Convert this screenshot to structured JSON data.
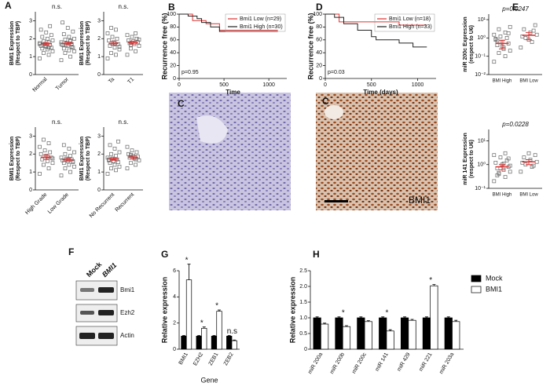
{
  "chart_data": [
    {
      "type": "strip",
      "label": "A",
      "annotation": "n.s.",
      "ylabel": [
        "BMI1 Expression",
        "(Respect to TBP)"
      ],
      "categories": [
        "Normal",
        "Tumor"
      ],
      "values": [
        [
          0.9,
          1.1,
          1.2,
          1.3,
          1.4,
          1.45,
          1.5,
          1.55,
          1.6,
          1.65,
          1.7,
          1.75,
          1.8,
          1.85,
          1.9,
          2.0,
          2.1,
          2.2,
          2.35,
          2.5,
          2.7,
          1.6,
          1.7,
          1.5
        ],
        [
          0.8,
          1.0,
          1.2,
          1.3,
          1.35,
          1.45,
          1.5,
          1.6,
          1.65,
          1.7,
          1.75,
          1.8,
          1.9,
          1.95,
          2.0,
          2.1,
          2.25,
          2.4,
          2.6,
          2.9,
          1.55,
          1.65,
          1.7,
          1.85
        ]
      ],
      "mean": [
        1.72,
        1.74
      ],
      "sem": [
        0.07,
        0.07
      ],
      "ylim": [
        0,
        3.5
      ],
      "yticks": [
        0,
        1,
        2,
        3
      ],
      "color": "#666666",
      "mean_color": "#e03030"
    },
    {
      "type": "strip",
      "annotation": "n.s.",
      "ylabel": [
        "BMI1 Expression",
        "(Respect to TBP)"
      ],
      "categories": [
        "Ta",
        "T1"
      ],
      "values": [
        [
          0.9,
          1.1,
          1.2,
          1.4,
          1.5,
          1.6,
          1.7,
          1.8,
          1.9,
          2.0,
          2.1,
          2.3,
          2.5,
          2.6,
          1.55,
          1.75
        ],
        [
          1.1,
          1.3,
          1.45,
          1.6,
          1.7,
          1.75,
          1.8,
          1.85,
          1.9,
          2.0,
          2.1,
          2.2,
          2.3,
          1.65,
          1.95
        ]
      ],
      "mean": [
        1.74,
        1.78
      ],
      "sem": [
        0.1,
        0.08
      ],
      "ylim": [
        0,
        3.5
      ],
      "yticks": [
        0,
        1,
        2,
        3
      ],
      "color": "#666666",
      "mean_color": "#e03030"
    },
    {
      "type": "strip",
      "annotation": "n.s.",
      "ylabel": [
        "BMI1 Expression",
        "(Respect to TBP)"
      ],
      "categories": [
        "High Grade",
        "Low Grade"
      ],
      "values": [
        [
          0.9,
          1.2,
          1.4,
          1.5,
          1.6,
          1.7,
          1.8,
          1.9,
          2.0,
          2.1,
          2.2,
          2.4,
          2.6,
          2.8,
          1.75,
          1.85
        ],
        [
          0.8,
          1.0,
          1.2,
          1.3,
          1.4,
          1.5,
          1.55,
          1.6,
          1.65,
          1.7,
          1.75,
          1.8,
          1.9,
          2.0,
          2.1,
          2.3,
          2.5,
          1.6,
          1.7
        ]
      ],
      "mean": [
        1.82,
        1.68
      ],
      "sem": [
        0.12,
        0.08
      ],
      "ylim": [
        0,
        3.5
      ],
      "yticks": [
        0,
        1,
        2,
        3
      ],
      "color": "#666666",
      "mean_color": "#e03030"
    },
    {
      "type": "strip",
      "annotation": "n.s.",
      "ylabel": [
        "BMI1 Expression",
        "(Respect to TBP)"
      ],
      "categories": [
        "No Recurrent",
        "Recurrent"
      ],
      "values": [
        [
          0.9,
          1.1,
          1.2,
          1.3,
          1.4,
          1.5,
          1.55,
          1.6,
          1.65,
          1.7,
          1.75,
          1.8,
          1.9,
          2.0,
          2.1,
          2.3,
          2.5,
          2.7,
          1.6,
          1.7
        ],
        [
          1.2,
          1.4,
          1.5,
          1.65,
          1.75,
          1.8,
          1.85,
          1.9,
          2.0,
          2.1,
          2.2,
          2.4,
          1.7,
          1.95
        ]
      ],
      "mean": [
        1.72,
        1.82
      ],
      "sem": [
        0.07,
        0.09
      ],
      "ylim": [
        0,
        3.5
      ],
      "yticks": [
        0,
        1,
        2,
        3
      ],
      "color": "#666666",
      "mean_color": "#e03030"
    },
    {
      "type": "km",
      "label": "B",
      "annotation": "p=0.95",
      "xlabel": "Time",
      "ylabel": "Recurrence free (%)",
      "series": [
        {
          "name": "Bmi1 Low (n=29)",
          "color": "#e03030",
          "x": [
            0,
            150,
            150,
            300,
            300,
            450,
            450,
            1100
          ],
          "y": [
            100,
            100,
            90,
            90,
            85,
            85,
            75,
            75
          ]
        },
        {
          "name": "Bmi1 High (n=30)",
          "color": "#222222",
          "x": [
            0,
            100,
            100,
            200,
            200,
            250,
            250,
            350,
            350,
            450,
            450,
            1100
          ],
          "y": [
            100,
            100,
            97,
            97,
            93,
            93,
            87,
            87,
            80,
            80,
            73,
            73
          ]
        }
      ],
      "xlim": [
        0,
        1200
      ],
      "xticks": [
        0,
        500,
        1000
      ],
      "ylim": [
        0,
        100
      ],
      "yticks": [
        0,
        20,
        40,
        60,
        80,
        100
      ]
    },
    {
      "type": "km",
      "label": "D",
      "annotation": "p=0.03",
      "xlabel": "Time (days)",
      "ylabel": "Recurrence free (%)",
      "series": [
        {
          "name": "Bmi1 Low (n=18)",
          "color": "#e03030",
          "x": [
            0,
            150,
            150,
            800,
            800,
            1100
          ],
          "y": [
            100,
            100,
            88,
            88,
            83,
            83
          ]
        },
        {
          "name": "Bmi1 High (n=33)",
          "color": "#222222",
          "x": [
            0,
            100,
            100,
            200,
            200,
            350,
            350,
            500,
            500,
            550,
            550,
            800,
            800,
            950,
            950,
            1100
          ],
          "y": [
            100,
            100,
            95,
            95,
            85,
            85,
            75,
            75,
            65,
            65,
            60,
            60,
            55,
            55,
            49,
            49
          ]
        }
      ],
      "xlim": [
        0,
        1200
      ],
      "xticks": [
        0,
        500,
        1000
      ],
      "ylim": [
        0,
        100
      ],
      "yticks": [
        0,
        20,
        40,
        60,
        80,
        100
      ]
    },
    {
      "type": "strip",
      "label": "E",
      "annotation": "p=0.0247",
      "log": true,
      "ylabel": [
        "miR 200c Expression",
        "(respect to U6)"
      ],
      "categories": [
        "BMI High",
        "BMI Low"
      ],
      "values": [
        [
          0.05,
          0.1,
          0.15,
          0.2,
          0.3,
          0.4,
          0.5,
          0.6,
          0.8,
          1,
          1.2,
          1.5,
          2,
          3,
          4,
          0.25,
          0.7,
          1.8,
          0.35,
          0.9
        ],
        [
          0.3,
          0.6,
          1,
          1.5,
          2,
          3,
          5,
          0.8,
          1.2,
          2.5
        ]
      ],
      "mean": [
        0.5,
        1.4
      ],
      "sem": [
        0.25,
        0.6
      ],
      "ylim": [
        0.01,
        20
      ],
      "yticks": [
        {
          "value": 0.01,
          "label": "10⁻²"
        },
        {
          "value": 0.1,
          "label": "10⁻¹"
        },
        {
          "value": 1,
          "label": "10⁰"
        },
        {
          "value": 10,
          "label": "10¹"
        }
      ],
      "color": "#666666",
      "mean_color": "#e03030"
    },
    {
      "type": "strip",
      "annotation": "p=0.0228",
      "log": true,
      "ylabel": [
        "miR 141 Expression",
        "(respect to U6)"
      ],
      "categories": [
        "BMI High",
        "BMI Low"
      ],
      "values": [
        [
          0.2,
          0.3,
          0.4,
          0.5,
          0.6,
          0.7,
          0.8,
          1,
          1.2,
          1.5,
          2,
          2.5,
          3,
          0.45,
          0.9,
          1.1,
          0.35,
          1.8
        ],
        [
          0.5,
          0.8,
          1,
          1.3,
          1.6,
          2,
          2.5,
          3,
          1.2,
          0.9
        ]
      ],
      "mean": [
        0.8,
        1.3
      ],
      "sem": [
        0.2,
        0.3
      ],
      "ylim": [
        0.1,
        30
      ],
      "yticks": [
        {
          "value": 0.1,
          "label": "10⁻¹"
        },
        {
          "value": 1,
          "label": "10⁰"
        },
        {
          "value": 10,
          "label": "10¹"
        }
      ],
      "color": "#666666",
      "mean_color": "#e03030"
    },
    {
      "type": "bar",
      "label": "G",
      "xlabel": "Gene",
      "ylabel": "Relative expression",
      "categories": [
        "BMI1",
        "EZH2",
        "ZEB1",
        "ZEB2"
      ],
      "series": [
        {
          "name": "Mock",
          "color": "#000000",
          "values": [
            1.0,
            1.0,
            1.0,
            1.0
          ],
          "errors": [
            0.05,
            0.05,
            0.05,
            0.05
          ]
        },
        {
          "name": "BMI1",
          "color": "#ffffff",
          "values": [
            5.3,
            1.6,
            2.9,
            0.65
          ],
          "errors": [
            1.2,
            0.1,
            0.1,
            0.05
          ]
        }
      ],
      "annotations": [
        "*",
        "*",
        "*",
        "n.s"
      ],
      "ylim": [
        0,
        6
      ],
      "yticks": [
        0,
        2,
        4,
        6
      ]
    },
    {
      "type": "bar",
      "label": "H",
      "ylabel": "Relative expression",
      "legend": "right",
      "categories": [
        "miR 200a",
        "miR 200b",
        "miR 200c",
        "miR 141",
        "miR 429",
        "miR 221",
        "miR 203a"
      ],
      "series": [
        {
          "name": "Mock",
          "color": "#000000",
          "values": [
            1.0,
            1.0,
            1.0,
            1.0,
            1.0,
            1.0,
            1.0
          ],
          "errors": [
            0.03,
            0.03,
            0.03,
            0.03,
            0.03,
            0.03,
            0.03
          ]
        },
        {
          "name": "BMI1",
          "color": "#ffffff",
          "values": [
            0.8,
            0.72,
            0.88,
            0.58,
            0.92,
            2.02,
            0.88
          ],
          "errors": [
            0.03,
            0.03,
            0.03,
            0.04,
            0.03,
            0.04,
            0.04
          ]
        }
      ],
      "annotations": [
        null,
        "*",
        null,
        "*",
        null,
        "*",
        null
      ],
      "ylim": [
        0,
        2.5
      ],
      "yticks": [
        0,
        0.5,
        {
          "value": 1,
          "label": "1.0"
        },
        1.5,
        {
          "value": 2,
          "label": "2.0"
        },
        2.5
      ]
    }
  ],
  "images": [
    {
      "label": "C"
    },
    {
      "label": "C",
      "caption": "BMI1"
    }
  ],
  "blot": {
    "label": "F",
    "lanes": [
      "Mock",
      "BMI1"
    ],
    "rows": [
      "Bmi1",
      "Ezh2",
      "Actin"
    ]
  }
}
